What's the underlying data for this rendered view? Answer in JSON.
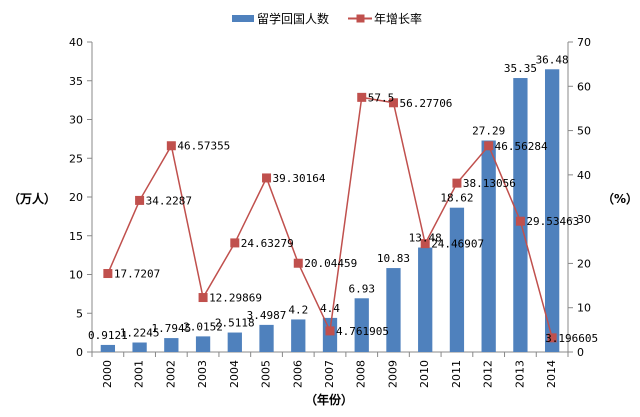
{
  "chart_data": {
    "type": "bar",
    "categories": [
      "2000",
      "2001",
      "2002",
      "2003",
      "2004",
      "2005",
      "2006",
      "2007",
      "2008",
      "2009",
      "2010",
      "2011",
      "2012",
      "2013",
      "2014"
    ],
    "xlabel": "（年份）",
    "ylabel": "（万人）",
    "y2label": "（%）",
    "ylim": [
      0,
      40
    ],
    "y2lim": [
      0,
      70
    ],
    "yticks": [
      "0",
      "5",
      "10",
      "15",
      "20",
      "25",
      "30",
      "35",
      "40"
    ],
    "y2ticks": [
      "0",
      "10",
      "20",
      "30",
      "40",
      "50",
      "60",
      "70"
    ],
    "grid": false,
    "legend_position": "top",
    "series": [
      {
        "name": "留学回国人数",
        "type": "bar",
        "axis": "left",
        "color": "#4F81BD",
        "values": [
          0.9121,
          1.2245,
          1.7945,
          2.0152,
          2.5118,
          3.4987,
          4.2,
          4.4,
          6.93,
          10.83,
          13.48,
          18.62,
          27.29,
          35.35,
          36.48
        ],
        "labels": [
          "0.9121",
          "1.2245",
          "1.7945",
          "2.0152",
          "2.5118",
          "3.4987",
          "4.2",
          "4.4",
          "6.93",
          "10.83",
          "13.48",
          "18.62",
          "27.29",
          "35.35",
          "36.48"
        ]
      },
      {
        "name": "年增长率",
        "type": "line",
        "axis": "right",
        "color": "#C0504D",
        "values": [
          17.7207,
          34.2287,
          46.57355,
          12.29869,
          24.63279,
          39.30164,
          20.04459,
          4.761905,
          57.5,
          56.27706,
          24.46907,
          38.13056,
          46.56284,
          29.53463,
          3.196605
        ],
        "labels": [
          "17.7207",
          "34.2287",
          "46.57355",
          "12.29869",
          "24.63279",
          "39.30164",
          "20.04459",
          "4.761905",
          "57.5",
          "56.27706",
          "24.46907",
          "38.13056",
          "46.56284",
          "29.53463",
          "3.196605"
        ]
      }
    ]
  }
}
